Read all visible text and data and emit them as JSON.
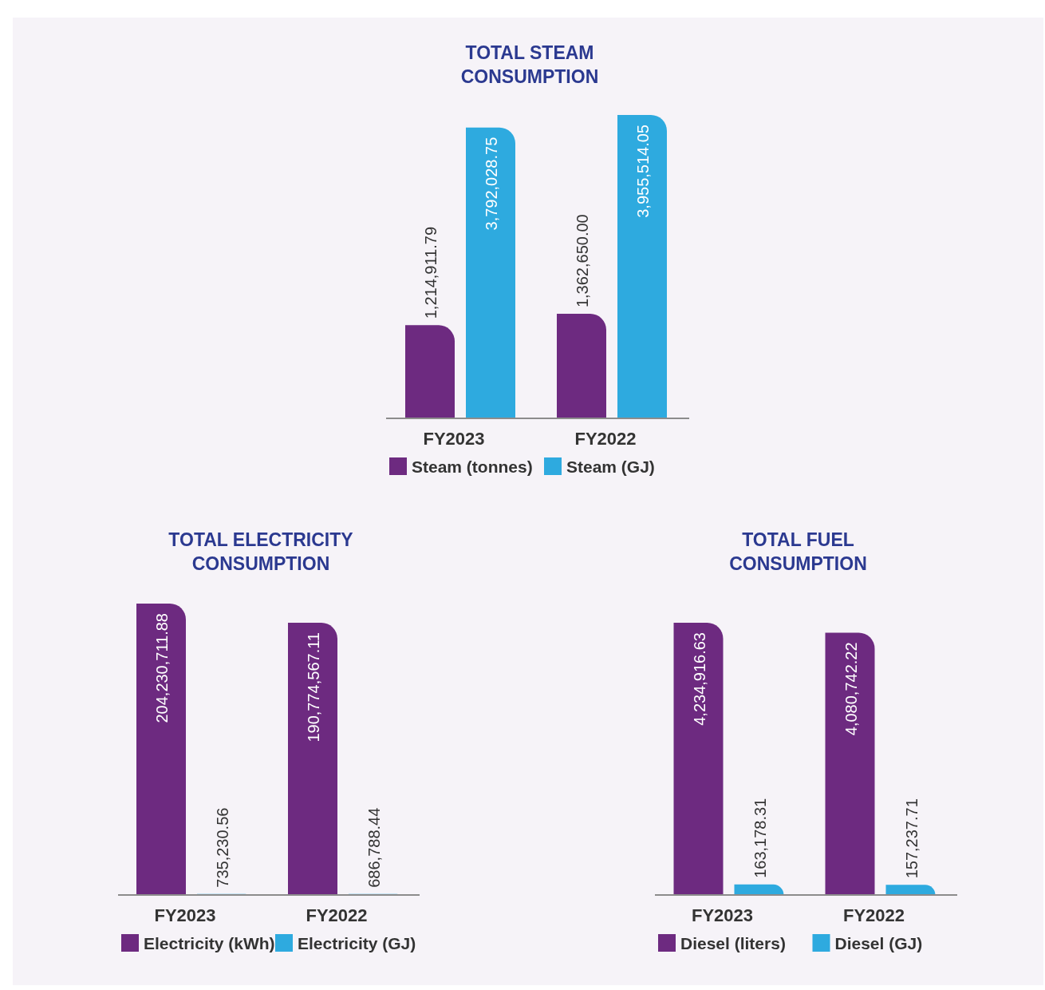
{
  "chart_data": [
    {
      "type": "bar",
      "title": "TOTAL STEAM CONSUMPTION",
      "categories": [
        "FY2023",
        "FY2022"
      ],
      "legend": "bottom",
      "series": [
        {
          "name": "Steam (tonnes)",
          "color": "#6d2a80",
          "values": [
            1214911.79,
            1362650.0
          ],
          "value_labels": [
            "1,214,911.79",
            "1,362,650.00"
          ]
        },
        {
          "name": "Steam (GJ)",
          "color": "#2eaadf",
          "values": [
            3792028.75,
            3955514.05
          ],
          "value_labels": [
            "3,792,028.75",
            "3,955,514.05"
          ]
        }
      ]
    },
    {
      "type": "bar",
      "title": "TOTAL ELECTRICITY CONSUMPTION",
      "categories": [
        "FY2023",
        "FY2022"
      ],
      "legend": "bottom",
      "series": [
        {
          "name": "Electricity (kWh)",
          "color": "#6d2a80",
          "values": [
            204230711.88,
            190774567.11
          ],
          "value_labels": [
            "204,230,711.88",
            "190,774,567.11"
          ]
        },
        {
          "name": "Electricity (GJ)",
          "color": "#2eaadf",
          "values": [
            735230.56,
            686788.44
          ],
          "value_labels": [
            "735,230.56",
            "686,788.44"
          ]
        }
      ]
    },
    {
      "type": "bar",
      "title": "TOTAL FUEL CONSUMPTION",
      "categories": [
        "FY2023",
        "FY2022"
      ],
      "legend": "bottom",
      "series": [
        {
          "name": "Diesel (liters)",
          "color": "#6d2a80",
          "values": [
            4234916.63,
            4080742.22
          ],
          "value_labels": [
            "4,234,916.63",
            "4,080,742.22"
          ]
        },
        {
          "name": "Diesel (GJ)",
          "color": "#2eaadf",
          "values": [
            163178.31,
            157237.71
          ],
          "value_labels": [
            "163,178.31",
            "157,237.71"
          ]
        }
      ]
    }
  ]
}
